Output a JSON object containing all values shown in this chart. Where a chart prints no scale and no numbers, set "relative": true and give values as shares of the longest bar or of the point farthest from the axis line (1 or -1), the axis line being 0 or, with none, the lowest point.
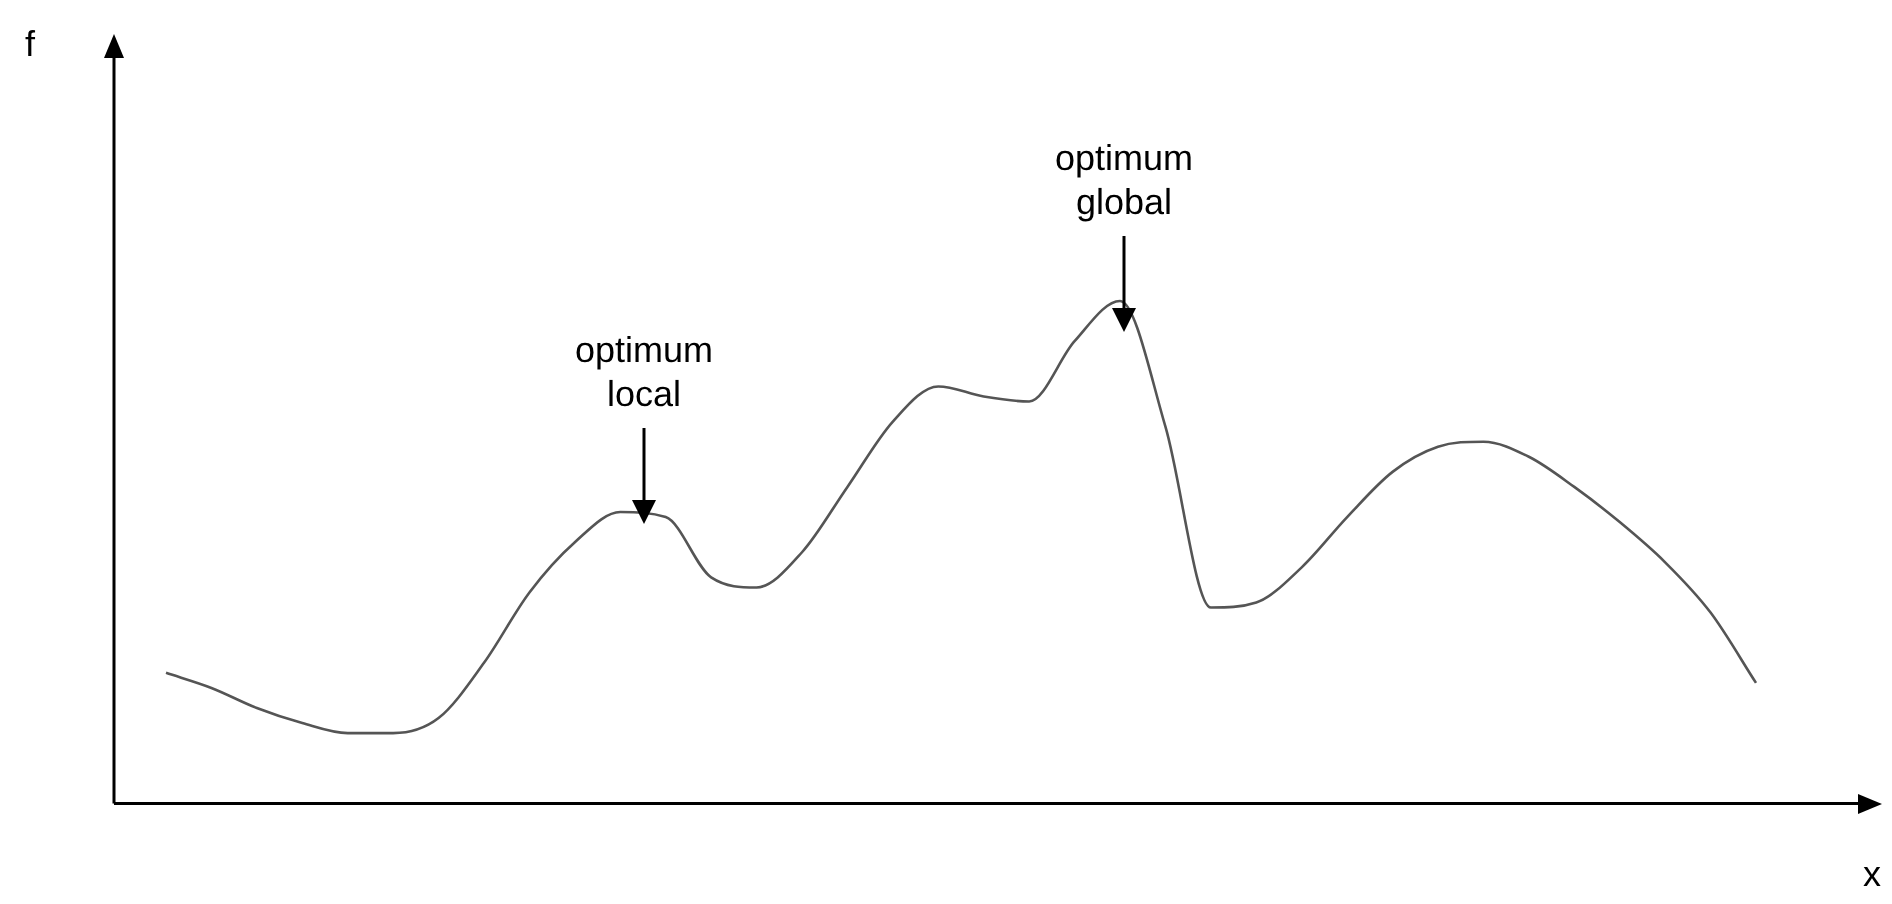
{
  "chart_data": {
    "type": "line",
    "relative": true,
    "xlabel": "x",
    "legend": false,
    "marker": "none",
    "line_style": "solid",
    "categories": [
      null,
      null,
      null,
      null,
      null,
      null,
      null,
      null,
      null,
      null,
      null,
      null,
      null,
      null,
      null,
      null,
      null,
      null,
      null,
      null,
      null,
      null,
      null,
      null,
      null,
      null,
      null,
      null,
      null,
      null,
      null,
      null,
      null,
      null,
      null,
      null
    ],
    "series": [
      {
        "color": "#555555",
        "values": [
          0.26,
          0.23,
          0.19,
          0.16,
          0.14,
          0.14,
          0.17,
          0.28,
          0.42,
          0.52,
          0.58,
          0.57,
          0.45,
          0.43,
          0.5,
          0.63,
          0.76,
          0.83,
          0.81,
          0.8,
          0.92,
          1.0,
          0.75,
          0.39,
          0.4,
          0.47,
          0.57,
          0.66,
          0.71,
          0.72,
          0.69,
          0.63,
          0.56,
          0.48,
          0.38,
          0.24
        ]
      }
    ],
    "annotations": [
      "f",
      "optimum local",
      "optimum global"
    ]
  }
}
